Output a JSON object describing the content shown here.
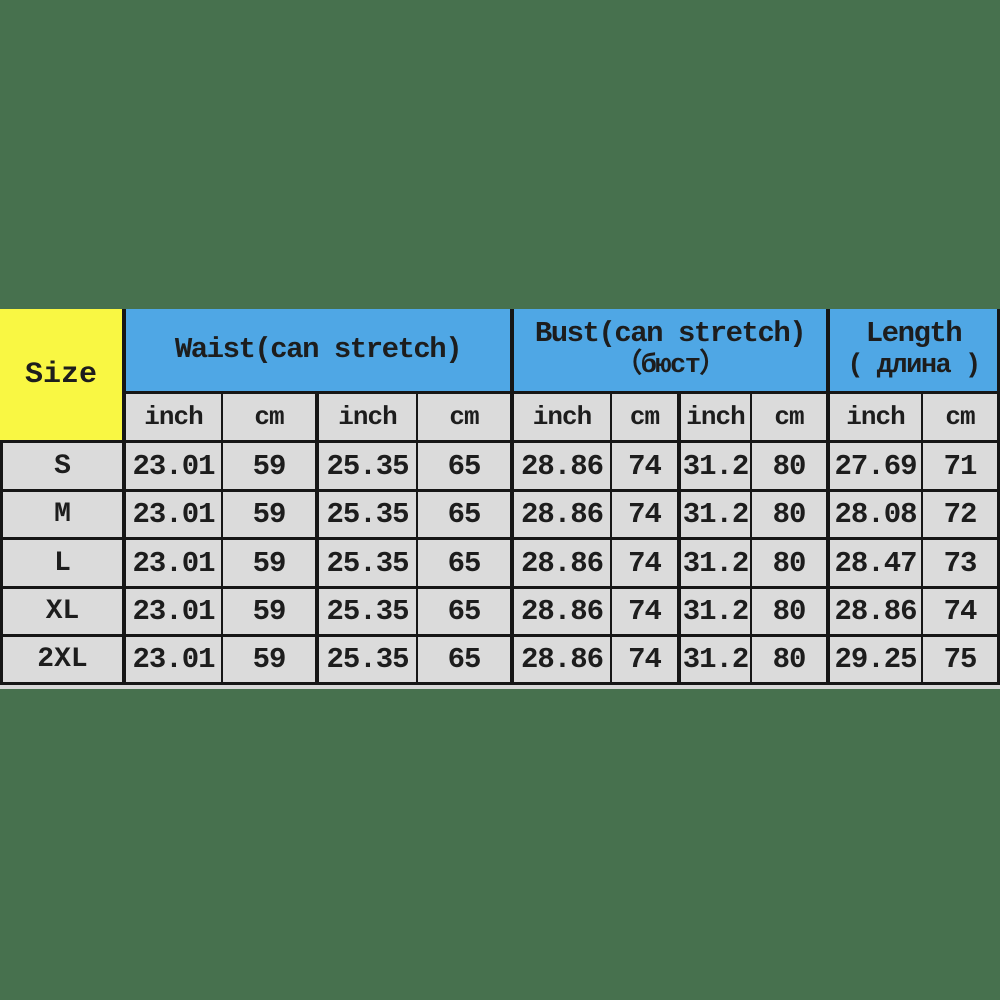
{
  "page": {
    "background_color": "#47714E"
  },
  "chart_data": {
    "type": "table",
    "corner_header": "Size",
    "group_headers": [
      {
        "line1": "Waist(can stretch)",
        "line2": "",
        "span": 4
      },
      {
        "line1": "Bust(can stretch)",
        "line2": "（бюст）",
        "span": 4
      },
      {
        "line1": "Length",
        "line2": "( длина )",
        "span": 2
      }
    ],
    "unit_row": [
      "inch",
      "cm",
      "inch",
      "cm",
      "inch",
      "cm",
      "inch",
      "cm",
      "inch",
      "cm"
    ],
    "rows": [
      {
        "size": "S",
        "values": [
          "23.01",
          "59",
          "25.35",
          "65",
          "28.86",
          "74",
          "31.2",
          "80",
          "27.69",
          "71"
        ]
      },
      {
        "size": "M",
        "values": [
          "23.01",
          "59",
          "25.35",
          "65",
          "28.86",
          "74",
          "31.2",
          "80",
          "28.08",
          "72"
        ]
      },
      {
        "size": "L",
        "values": [
          "23.01",
          "59",
          "25.35",
          "65",
          "28.86",
          "74",
          "31.2",
          "80",
          "28.47",
          "73"
        ]
      },
      {
        "size": "XL",
        "values": [
          "23.01",
          "59",
          "25.35",
          "65",
          "28.86",
          "74",
          "31.2",
          "80",
          "28.86",
          "74"
        ]
      },
      {
        "size": "2XL",
        "values": [
          "23.01",
          "59",
          "25.35",
          "65",
          "28.86",
          "74",
          "31.2",
          "80",
          "29.25",
          "75"
        ]
      }
    ],
    "colors": {
      "group_header_fill": "#4FA7E5",
      "size_corner_fill": "#F9F743",
      "cell_fill": "#DBDBDB",
      "border": "#161616",
      "page_background": "#47714E"
    },
    "layout": {
      "grid": "on",
      "header_rows": 2,
      "body_rows": 5,
      "columns": 11
    }
  }
}
